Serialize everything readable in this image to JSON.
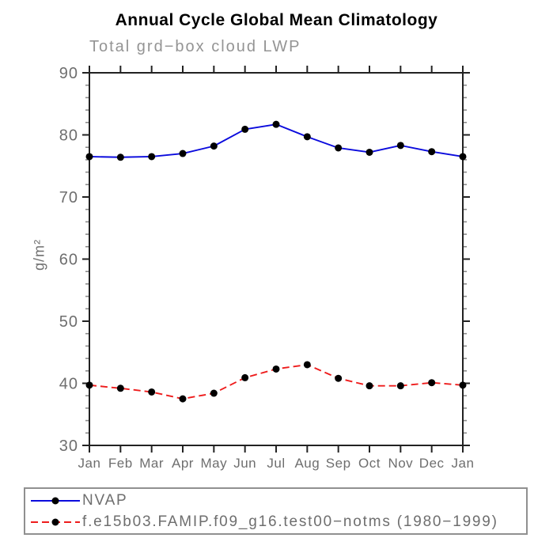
{
  "chart_data": {
    "type": "line",
    "title": "Annual Cycle Global Mean Climatology",
    "subtitle": "Total grd−box cloud LWP",
    "xlabel": "",
    "ylabel": "g/m²",
    "categories": [
      "Jan",
      "Feb",
      "Mar",
      "Apr",
      "May",
      "Jun",
      "Jul",
      "Aug",
      "Sep",
      "Oct",
      "Nov",
      "Dec",
      "Jan"
    ],
    "ylim": [
      30,
      90
    ],
    "yticks": [
      90,
      80,
      70,
      60,
      50,
      40,
      30
    ],
    "minor_tick_step": 2,
    "grid": false,
    "legend_position": "bottom-left-box",
    "axis_color": "#222222",
    "minor_tick_color": "#8a8a8a",
    "tick_label_color": "#6e6e6e",
    "marker_style": "filled-circle",
    "series": [
      {
        "name": "NVAP",
        "color": "#0b0bdd",
        "line_style": "solid",
        "marker_color": "#000000",
        "values": [
          76.5,
          76.4,
          76.5,
          77.0,
          78.2,
          80.9,
          81.7,
          79.7,
          77.9,
          77.2,
          78.3,
          77.3,
          76.5
        ]
      },
      {
        "name": "f.e15b03.FAMIP.f09_g16.test00−notms (1980−1999)",
        "color": "#ee1c1c",
        "line_style": "dashed",
        "marker_color": "#000000",
        "values": [
          39.7,
          39.2,
          38.6,
          37.5,
          38.4,
          40.9,
          42.3,
          43.0,
          40.8,
          39.6,
          39.6,
          40.1,
          39.7
        ]
      }
    ]
  }
}
